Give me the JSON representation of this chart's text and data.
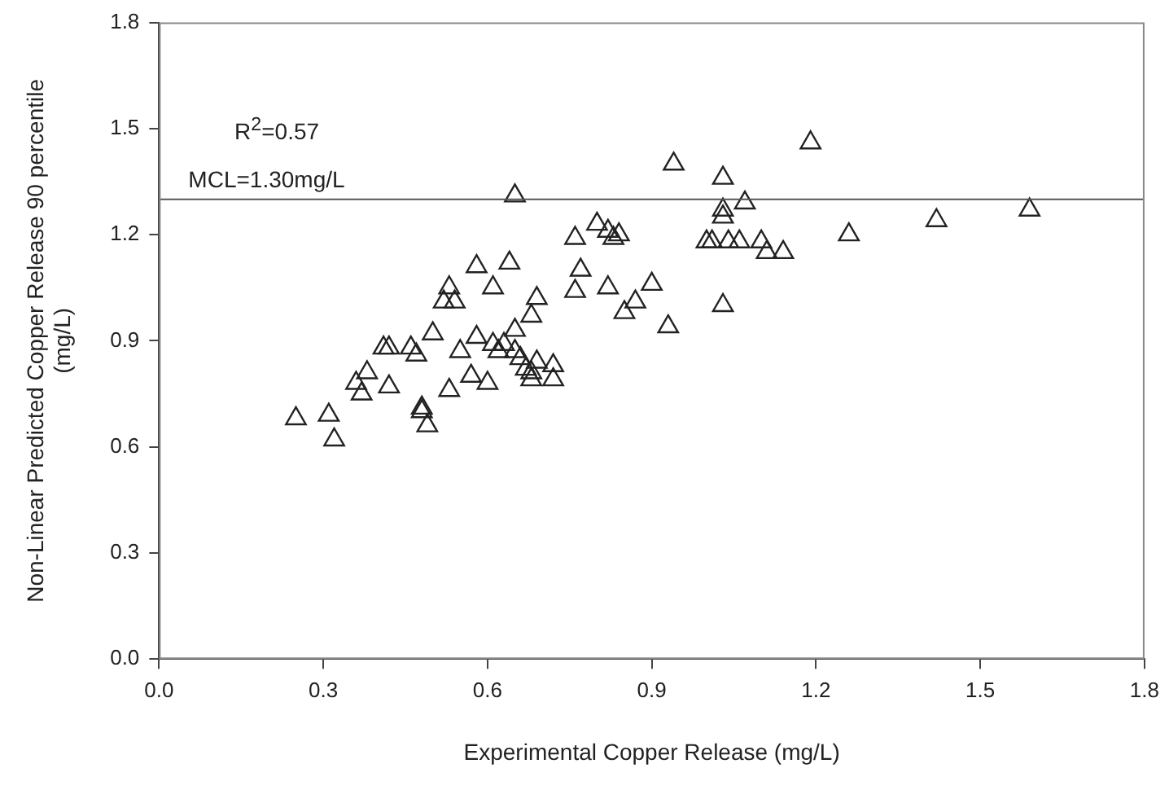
{
  "chart_data": {
    "type": "scatter",
    "xlabel": "Experimental Copper Release (mg/L)",
    "ylabel": "Non-Linear Predicted Copper Release 90 percentile\n(mg/L)",
    "x": [
      0.25,
      0.31,
      0.32,
      0.36,
      0.37,
      0.38,
      0.42,
      0.41,
      0.42,
      0.46,
      0.47,
      0.48,
      0.48,
      0.49,
      0.5,
      0.52,
      0.53,
      0.53,
      0.54,
      0.55,
      0.57,
      0.58,
      0.58,
      0.6,
      0.61,
      0.61,
      0.62,
      0.63,
      0.64,
      0.65,
      0.65,
      0.65,
      0.66,
      0.67,
      0.68,
      0.68,
      0.69,
      0.69,
      0.68,
      0.72,
      0.72,
      0.76,
      0.76,
      0.77,
      0.8,
      0.82,
      0.82,
      0.83,
      0.84,
      0.85,
      0.87,
      0.9,
      0.93,
      0.94,
      1.0,
      1.01,
      1.03,
      1.03,
      1.03,
      1.03,
      1.04,
      1.06,
      1.07,
      1.1,
      1.11,
      1.14,
      1.19,
      1.26,
      1.42,
      1.59
    ],
    "values": [
      0.68,
      0.69,
      0.62,
      0.78,
      0.75,
      0.81,
      0.77,
      0.88,
      0.88,
      0.88,
      0.86,
      0.71,
      0.7,
      0.66,
      0.92,
      1.01,
      0.76,
      1.05,
      1.01,
      0.87,
      0.8,
      0.91,
      1.11,
      0.78,
      0.89,
      1.05,
      0.87,
      0.89,
      1.12,
      0.93,
      1.31,
      0.87,
      0.85,
      0.82,
      0.81,
      0.79,
      0.84,
      1.02,
      0.97,
      0.83,
      0.79,
      1.19,
      1.04,
      1.1,
      1.23,
      1.05,
      1.21,
      1.19,
      1.2,
      0.98,
      1.01,
      1.06,
      0.94,
      1.4,
      1.18,
      1.18,
      1.36,
      1.27,
      1.25,
      1.0,
      1.18,
      1.18,
      1.29,
      1.18,
      1.15,
      1.15,
      1.46,
      1.2,
      1.24,
      1.27
    ],
    "color": "#222222",
    "marker": "triangle",
    "xlim": [
      0,
      1.8
    ],
    "xticks": [
      {
        "value": 0,
        "label": "0.0"
      },
      {
        "value": 0.3,
        "label": "0.3"
      },
      {
        "value": 0.6,
        "label": "0.6"
      },
      {
        "value": 0.9,
        "label": "0.9"
      },
      {
        "value": 1.2,
        "label": "1.2"
      },
      {
        "value": 1.5,
        "label": "1.5"
      },
      {
        "value": 1.8,
        "label": "1.8"
      }
    ],
    "ylim": [
      0,
      1.8
    ],
    "yticks": [
      {
        "value": 0,
        "label": "0.0"
      },
      {
        "value": 0.3,
        "label": "0.3"
      },
      {
        "value": 0.6,
        "label": "0.6"
      },
      {
        "value": 0.9,
        "label": "0.9"
      },
      {
        "value": 1.2,
        "label": "1.2"
      },
      {
        "value": 1.5,
        "label": "1.5"
      },
      {
        "value": 1.8,
        "label": "1.8"
      }
    ],
    "ref_lines": [
      {
        "axis": "y",
        "value": 1.3,
        "label": "MCL=1.30mg/L",
        "color": "#555555"
      }
    ],
    "annotations": [
      "R$^{2}$=0.57"
    ],
    "grid": false,
    "legend": false
  }
}
